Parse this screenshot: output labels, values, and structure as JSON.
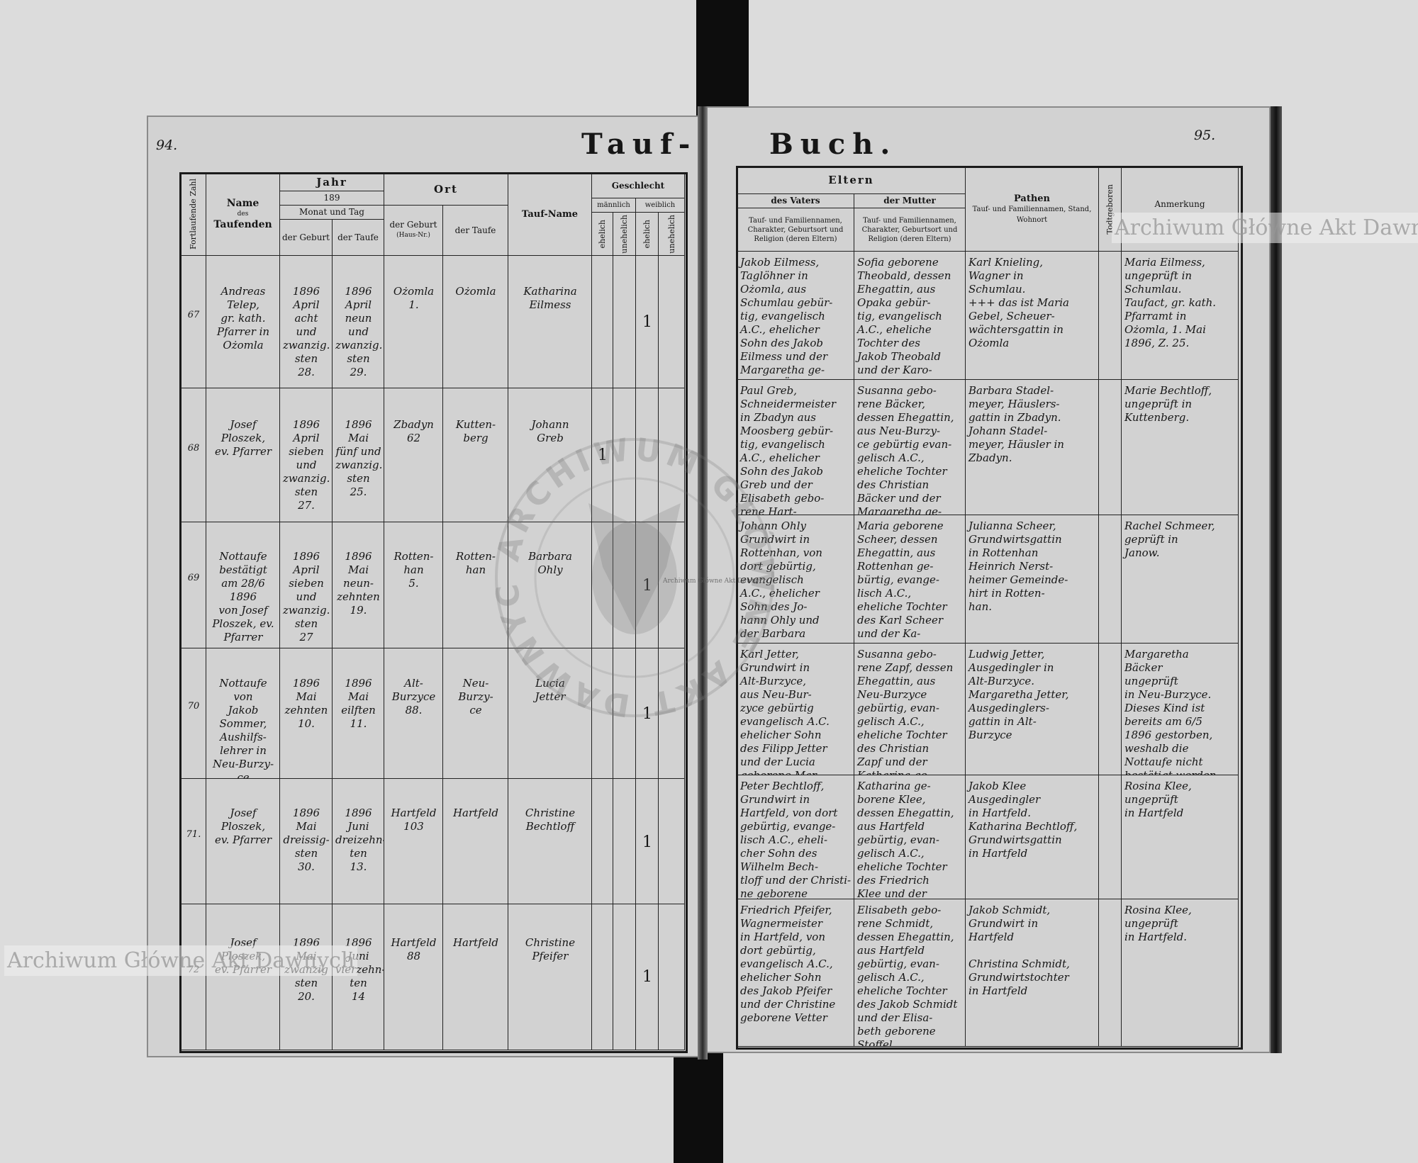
{
  "book": {
    "title_left": "Tauf-",
    "title_right": "Buch.",
    "page_left": "94.",
    "page_right": "95."
  },
  "left_header": {
    "number": "Fortlaufende Zahl",
    "name_title": "Name",
    "name_des": "des",
    "name_sub": "Taufenden",
    "year": "Jahr",
    "year_value": "189",
    "month_day": "Monat und Tag",
    "date_birth": "der Geburt",
    "date_baptism": "der Taufe",
    "place": "Ort",
    "place_birth": "der Geburt",
    "place_birth_note": "(Haus-Nr.)",
    "place_baptism": "der Taufe",
    "baptism_name": "Tauf-Name",
    "sex": "Geschlecht",
    "male": "männlich",
    "female": "weiblich",
    "legit": "ehelich",
    "illegit": "unehelich"
  },
  "right_header": {
    "parents": "Eltern",
    "father": "des Vaters",
    "mother": "der Mutter",
    "father_desc": "Tauf- und Familiennamen, Charakter, Geburtsort und Religion (deren Eltern)",
    "mother_desc": "Tauf- und Familiennamen, Charakter, Geburtsort und Religion (deren Eltern)",
    "godparents": "Pathen",
    "godparents_desc": "Tauf- und Familiennamen, Stand, Wohnort",
    "stillborn": "Todtgeboren",
    "remark": "Anmerkung"
  },
  "entries": [
    {
      "number": "67",
      "officiant": "Andreas\nTelep,\ngr. kath.\nPfarrer in\nOżomla",
      "birth_date": "1896\nApril\nacht und\nzwanzig.\nsten\n28.",
      "baptism_date": "1896\nApril\nneun\nund\nzwanzig.\nsten\n29.",
      "birth_place": "Ożomla\n1.",
      "baptism_place": "Ożomla",
      "name": "Katharina\nEilmess",
      "sex_column": "female_legit",
      "sex_mark": "1",
      "father": "Jakob Eilmess,\nTaglöhner in\nOżomla, aus\nSchumlau gebür-\ntig, evangelisch\nA.C., ehelicher\nSohn des Jakob\nEilmess und der\nMargaretha ge-\nborene Überle",
      "mother": "Sofia geborene\nTheobald, dessen\nEhegattin, aus\nOpaka gebür-\ntig, evangelisch\nA.C., eheliche\nTochter des\nJakob Theobald\nund der Karo-\nline geborene\nÜberle",
      "godparents": "Karl Knieling,\nWagner in\nSchumlau.\n+++ das ist Maria\nGebel, Scheuer-\nwächtersgattin in\nOżomla",
      "stillborn": "",
      "remark": "Maria Eilmess,\nungeprüft in\nSchumlau.\nTaufact, gr. kath.\nPfarramt in\nOżomla, 1. Mai\n1896, Z. 25."
    },
    {
      "number": "68",
      "officiant": "Josef Ploszek,\nev. Pfarrer",
      "birth_date": "1896\nApril\nsieben\nund\nzwanzig.\nsten\n27.",
      "baptism_date": "1896\nMai\nfünf und\nzwanzig.\nsten\n25.",
      "birth_place": "Zbadyn\n62",
      "baptism_place": "Kutten-\nberg",
      "name": "Johann\nGreb",
      "sex_column": "male_legit",
      "sex_mark": "1",
      "father": "Paul Greb,\nSchneidermeister\nin Zbadyn aus\nMoosberg gebür-\ntig, evangelisch\nA.C., ehelicher\nSohn des Jakob\nGreb und der\nElisabeth gebo-\nrene Hart-\nmann.",
      "mother": "Susanna gebo-\nrene Bäcker,\ndessen Ehegattin,\naus Neu-Burzy-\nce gebürtig evan-\ngelisch A.C.,\neheliche Tochter\ndes Christian\nBäcker und der\nMargaretha ge-\nborene Vonau",
      "godparents": "Barbara Stadel-\nmeyer, Häuslers-\ngattin in Zbadyn.\nJohann Stadel-\nmeyer, Häusler in\nZbadyn.",
      "stillborn": "",
      "remark": "Marie Bechtloff,\nungeprüft in\nKuttenberg."
    },
    {
      "number": "69",
      "officiant": "Nottaufe\nbestätigt\nam 28/6 1896\nvon Josef\nPloszek, ev.\nPfarrer",
      "birth_date": "1896\nApril\nsieben\nund\nzwanzig.\nsten\n27",
      "baptism_date": "1896\nMai\nneun-\nzehnten\n19.",
      "birth_place": "Rotten-\nhan\n5.",
      "baptism_place": "Rotten-\nhan",
      "name": "Barbara\nOhly",
      "sex_column": "female_legit",
      "sex_mark": "1",
      "father": "Johann Ohly\nGrundwirt in\nRottenhan, von\ndort gebürtig,\nevangelisch\nA.C., ehelicher\nSohn des Jo-\nhann Ohly und\nder Barbara\ngeborene Kunz",
      "mother": "Maria geborene\nScheer, dessen\nEhegattin, aus\nRottenhan ge-\nbürtig, evange-\nlisch A.C.,\neheliche Tochter\ndes Karl Scheer\nund der Ka-\ntharina gebo-\nrene Scheer",
      "godparents": "Julianna Scheer,\nGrundwirtsgattin\nin Rottenhan\nHeinrich Nerst-\nheimer Gemeinde-\nhirt in Rotten-\nhan.",
      "stillborn": "",
      "remark": "Rachel Schmeer,\ngeprüft in\nJanow."
    },
    {
      "number": "70",
      "officiant": "Nottaufe\nvon\nJakob\nSommer,\nAushilfs-\nlehrer in\nNeu-Burzy-\nce",
      "birth_date": "1896\nMai\nzehnten\n10.",
      "baptism_date": "1896\nMai\neilften\n11.",
      "birth_place": "Alt-\nBurzyce\n88.",
      "baptism_place": "Neu-\nBurzy-\nce",
      "name": "Lucia\nJetter",
      "sex_column": "female_legit",
      "sex_mark": "1",
      "father": "Karl Jetter,\nGrundwirt in\nAlt-Burzyce,\naus Neu-Bur-\nzyce gebürtig\nevangelisch A.C.\nehelicher Sohn\ndes Filipp Jetter\nund der Lucia\ngeborene Mar-\ntin",
      "mother": "Susanna gebo-\nrene Zapf, dessen\nEhegattin, aus\nNeu-Burzyce\ngebürtig, evan-\ngelisch A.C.,\neheliche Tochter\ndes Christian\nZapf und der\nKatharina ge-\nborene Vonau",
      "godparents": "Ludwig Jetter,\nAusgedingler in\nAlt-Burzyce.\nMargaretha Jetter,\nAusgedinglers-\ngattin in Alt-\nBurzyce",
      "stillborn": "",
      "remark": "Margaretha\nBäcker\nungeprüft\nin Neu-Burzyce.\nDieses Kind ist\nbereits am 6/5\n1896 gestorben,\nweshalb die\nNottaufe nicht\nbestätigt werden\nKonnte."
    },
    {
      "number": "71.",
      "officiant": "Josef Ploszek,\nev. Pfarrer",
      "birth_date": "1896\nMai\ndreissig-\nsten\n30.",
      "baptism_date": "1896\nJuni\ndreizehn-\nten\n13.",
      "birth_place": "Hartfeld\n103",
      "baptism_place": "Hartfeld",
      "name": "Christine\nBechtloff",
      "sex_column": "female_legit",
      "sex_mark": "1",
      "father": "Peter Bechtloff,\nGrundwirt in\nHartfeld, von dort\ngebürtig, evange-\nlisch A.C., eheli-\ncher Sohn des\nWilhelm Bech-\ntloff und der Christi-\nne geborene\nBäcker",
      "mother": "Katharina ge-\nborene Klee,\ndessen Ehegattin,\naus Hartfeld\ngebürtig, evan-\ngelisch A.C.,\neheliche Tochter\ndes Friedrich\nKlee und der\nKaroline geborene\nHuget.",
      "godparents": "Jakob Klee\nAusgedingler\nin Hartfeld.\nKatharina Bechtloff,\nGrundwirtsgattin\nin Hartfeld",
      "stillborn": "",
      "remark": "Rosina Klee,\nungeprüft\nin Hartfeld"
    },
    {
      "number": "72",
      "officiant": "Josef Ploszek,\nev. Pfarrer",
      "birth_date": "1896\nMai\nzwanzig\nsten\n20.",
      "baptism_date": "1896\nJuni\nvierzehn-\nten\n14",
      "birth_place": "Hartfeld\n88",
      "baptism_place": "Hartfeld",
      "name": "Christine\nPfeifer",
      "sex_column": "female_legit",
      "sex_mark": "1",
      "father": "Friedrich Pfeifer,\nWagnermeister\nin Hartfeld, von\ndort gebürtig,\nevangelisch A.C.,\nehelicher Sohn\ndes Jakob Pfeifer\nund der Christine\ngeborene Vetter",
      "mother": "Elisabeth gebo-\nrene Schmidt,\ndessen Ehegattin,\naus Hartfeld\ngebürtig, evan-\ngelisch A.C.,\neheliche Tochter\ndes Jakob Schmidt\nund der Elisa-\nbeth geborene\nStoffel",
      "godparents": "Jakob Schmidt,\nGrundwirt in\nHartfeld\n\nChristina Schmidt,\nGrundwirtstochter\nin Hartfeld",
      "stillborn": "",
      "remark": "Rosina Klee,\nungeprüft\nin Hartfeld."
    }
  ],
  "watermarks": {
    "text": "Archiwum Główne Akt Dawnych",
    "stamp": "ARCHIWUM GŁÓWNE AKT DAWNYCH"
  },
  "colors": {
    "paper": "#d2d2d2",
    "ink": "#161616",
    "background": "#dcdcdc"
  }
}
